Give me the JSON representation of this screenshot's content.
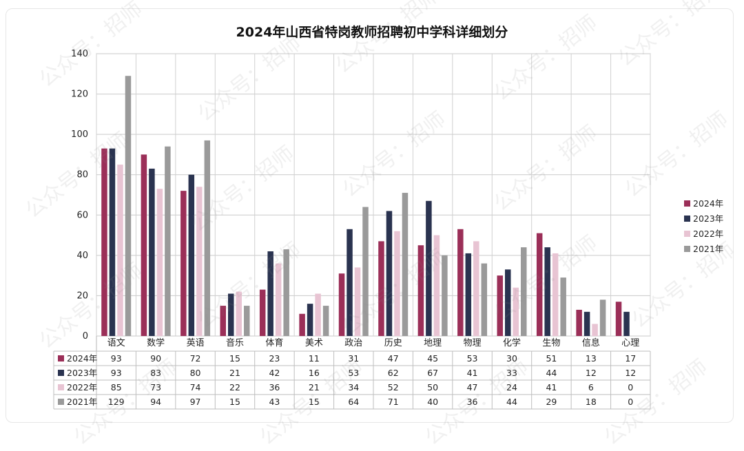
{
  "chart_data": {
    "type": "bar",
    "title": "2024年山西省特岗教师招聘初中学科详细划分",
    "categories": [
      "语文",
      "数学",
      "英语",
      "音乐",
      "体育",
      "美术",
      "政治",
      "历史",
      "地理",
      "物理",
      "化学",
      "生物",
      "信息",
      "心理"
    ],
    "series": [
      {
        "name": "2024年",
        "color": "#9b2f58",
        "values": [
          93,
          90,
          72,
          15,
          23,
          11,
          31,
          47,
          45,
          53,
          30,
          51,
          13,
          17
        ]
      },
      {
        "name": "2023年",
        "color": "#2a3350",
        "values": [
          93,
          83,
          80,
          21,
          42,
          16,
          53,
          62,
          67,
          41,
          33,
          44,
          12,
          12
        ]
      },
      {
        "name": "2022年",
        "color": "#e8c4d3",
        "values": [
          85,
          73,
          74,
          22,
          36,
          21,
          34,
          52,
          50,
          47,
          24,
          41,
          6,
          0
        ]
      },
      {
        "name": "2021年",
        "color": "#9a9a9a",
        "values": [
          129,
          94,
          97,
          15,
          43,
          15,
          64,
          71,
          40,
          36,
          44,
          29,
          18,
          0
        ]
      }
    ],
    "ylim": [
      0,
      140
    ],
    "yticks": [
      0,
      20,
      40,
      60,
      80,
      100,
      120,
      140
    ],
    "grid": true,
    "legend": "right",
    "table": true
  },
  "watermark_text": "公众号：招师"
}
